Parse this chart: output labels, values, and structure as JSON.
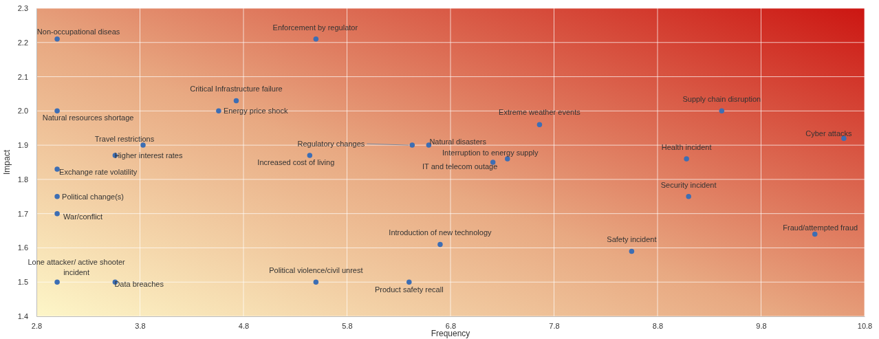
{
  "chart_data": {
    "type": "scatter",
    "xlabel": "Frequency",
    "ylabel": "Impact",
    "x": [
      3.0,
      3.0,
      3.0,
      3.0,
      3.0,
      3.0,
      3.56,
      3.56,
      3.83,
      4.56,
      4.73,
      5.5,
      5.44,
      6.43,
      6.59,
      7.21,
      7.35,
      7.66,
      6.7,
      5.5,
      6.4,
      8.55,
      9.08,
      9.1,
      9.42,
      10.6,
      10.32
    ],
    "series": [
      {
        "color": "#3d6eb4",
        "values": [
          2.21,
          2.0,
          1.83,
          1.75,
          1.7,
          1.5,
          1.5,
          1.87,
          1.9,
          2.0,
          2.03,
          2.21,
          1.87,
          1.9,
          1.9,
          1.85,
          1.86,
          1.96,
          1.61,
          1.5,
          1.5,
          1.59,
          1.86,
          1.75,
          2.0,
          1.92,
          1.64
        ]
      }
    ],
    "annotations": [
      {
        "text": "Non-occupational diseas",
        "x": 3.0,
        "y": 2.21
      },
      {
        "text": "Natural resources shortage",
        "x": 3.0,
        "y": 2.0
      },
      {
        "text": "Exchange rate volatility",
        "x": 3.0,
        "y": 1.83
      },
      {
        "text": "Political change(s)",
        "x": 3.0,
        "y": 1.75
      },
      {
        "text": "War/conflict",
        "x": 3.0,
        "y": 1.7
      },
      {
        "text": "Lone attacker/ active shooter incident",
        "x": 3.0,
        "y": 1.5
      },
      {
        "text": "Data breaches",
        "x": 3.56,
        "y": 1.5
      },
      {
        "text": "Higher interest rates",
        "x": 3.56,
        "y": 1.87
      },
      {
        "text": "Travel restrictions",
        "x": 3.83,
        "y": 1.9
      },
      {
        "text": "Energy price shock",
        "x": 4.56,
        "y": 2.0
      },
      {
        "text": "Critical Infrastructure failure",
        "x": 4.73,
        "y": 2.03
      },
      {
        "text": "Enforcement by regulator",
        "x": 5.5,
        "y": 2.21
      },
      {
        "text": "Increased cost of living",
        "x": 5.44,
        "y": 1.87
      },
      {
        "text": "Regulatory changes",
        "x": 6.43,
        "y": 1.9
      },
      {
        "text": "Natural disasters",
        "x": 6.59,
        "y": 1.9
      },
      {
        "text": "IT and telecom outage",
        "x": 7.21,
        "y": 1.85
      },
      {
        "text": "Interruption to energy supply",
        "x": 7.35,
        "y": 1.86
      },
      {
        "text": "Extreme weather events",
        "x": 7.66,
        "y": 1.96
      },
      {
        "text": "Introduction of new technology",
        "x": 6.7,
        "y": 1.61
      },
      {
        "text": "Political violence/civil unrest",
        "x": 5.5,
        "y": 1.5
      },
      {
        "text": "Product safety recall",
        "x": 6.4,
        "y": 1.5
      },
      {
        "text": "Safety incident",
        "x": 8.55,
        "y": 1.59
      },
      {
        "text": "Health incident",
        "x": 9.08,
        "y": 1.86
      },
      {
        "text": "Security incident",
        "x": 9.1,
        "y": 1.75
      },
      {
        "text": "Supply chain disruption",
        "x": 9.42,
        "y": 2.0
      },
      {
        "text": "Cyber attacks",
        "x": 10.6,
        "y": 1.92
      },
      {
        "text": "Fraud/attempted fraud",
        "x": 10.32,
        "y": 1.64
      }
    ],
    "xlim": [
      2.8,
      10.8
    ],
    "xticks": [
      2.8,
      3.8,
      4.8,
      5.8,
      6.8,
      7.8,
      8.8,
      9.8,
      10.8
    ],
    "ylim": [
      1.4,
      2.3
    ],
    "yticks": [
      1.4,
      1.5,
      1.6,
      1.7,
      1.8,
      1.9,
      {
        "value": 2,
        "label": "2.0"
      },
      2.1,
      2.2,
      2.3
    ],
    "grid": true,
    "marker": "circle"
  }
}
